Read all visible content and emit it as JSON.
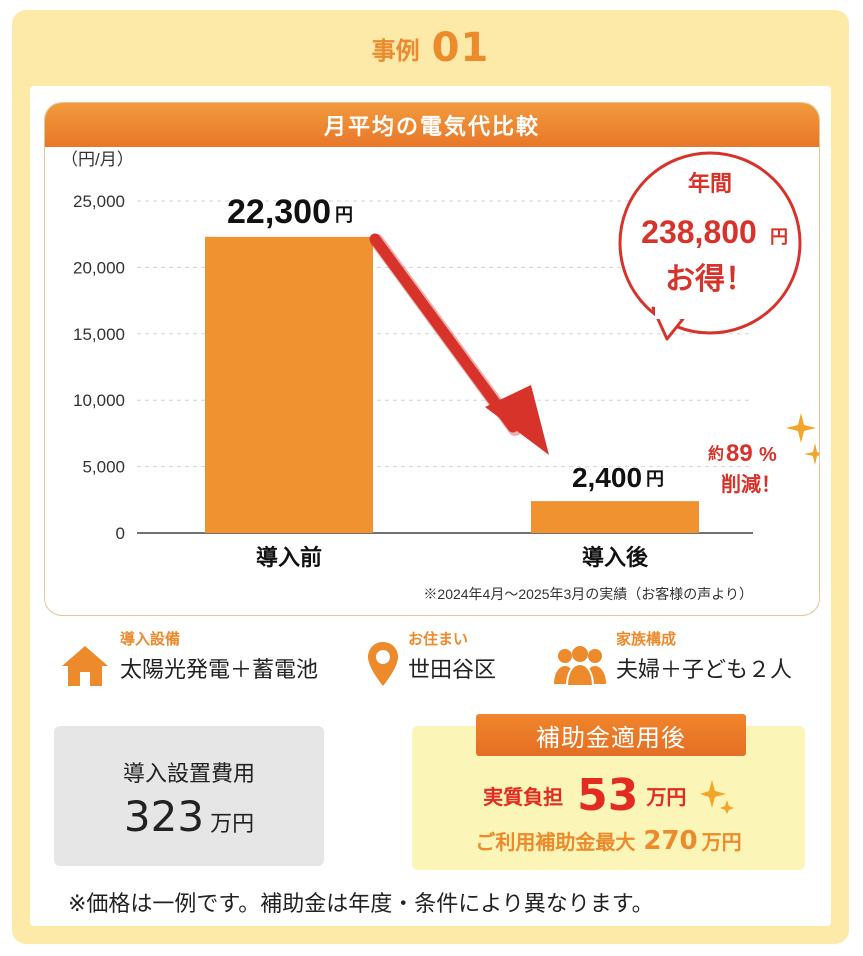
{
  "case": {
    "label": "事例",
    "number": "01"
  },
  "chart": {
    "header": "月平均の電気代比較",
    "unit_label": "（円/月）",
    "source_note": "※2024年4月～2025年3月の実績（お客様の声より）",
    "bubble": {
      "line1": "年間",
      "amount": "238,800",
      "unit": "円",
      "line3": "お得！"
    },
    "reduction": {
      "prefix": "約",
      "value": "89",
      "suffix": "%",
      "line2": "削減！"
    }
  },
  "chart_data": {
    "type": "bar",
    "categories": [
      "導入前",
      "導入後"
    ],
    "values": [
      22300,
      2400
    ],
    "value_labels": [
      "22,300",
      "2,400"
    ],
    "value_unit": "円",
    "ylabel": "（円/月）",
    "ylim": [
      0,
      25000
    ],
    "yticks": [
      0,
      5000,
      10000,
      15000,
      20000,
      25000
    ],
    "ytick_labels": [
      "0",
      "5,000",
      "10,000",
      "15,000",
      "20,000",
      "25,000"
    ],
    "grid": true,
    "colors": {
      "bar": "#f0922f",
      "arrow": "#d8332a",
      "grid": "#d6d6d6"
    }
  },
  "info": [
    {
      "icon": "house-icon",
      "label": "導入設備",
      "value": "太陽光発電＋蓄電池"
    },
    {
      "icon": "map-pin-icon",
      "label": "お住まい",
      "value": "世田谷区"
    },
    {
      "icon": "family-icon",
      "label": "家族構成",
      "value": "夫婦＋子ども２人"
    }
  ],
  "cost": {
    "label": "導入設置費用",
    "value": "323",
    "unit": "万円"
  },
  "subsidy": {
    "tag": "補助金適用後",
    "net_label": "実質負担",
    "net_value": "53",
    "net_unit": "万円",
    "max_label": "ご利用補助金最大",
    "max_value": "270",
    "max_unit": "万円"
  },
  "note": "※価格は一例です。補助金は年度・条件により異なります。",
  "colors": {
    "accent": "#ec8a2c",
    "red": "#e32b22",
    "card_bg": "#fde9a8",
    "subsidy_bg": "#fbf5b8"
  }
}
